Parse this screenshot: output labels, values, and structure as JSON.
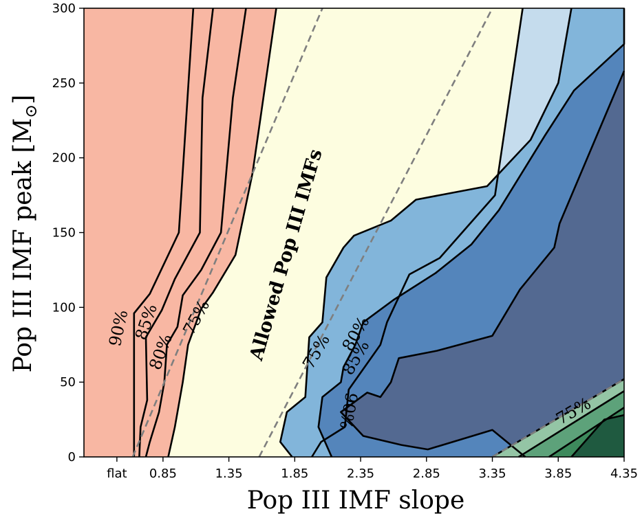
{
  "chart_data": {
    "type": "filled-contour",
    "xlabel": "Pop III  IMF slope",
    "ylabel": "Pop III  IMF peak [M",
    "ylabel_sun": "⊙",
    "ylabel_close": "]",
    "x_tick_labels": [
      "flat",
      "0.85",
      "1.35",
      "1.85",
      "2.35",
      "2.85",
      "3.35",
      "3.85",
      "4.35"
    ],
    "x_ticks": [
      0.5,
      0.85,
      1.35,
      1.85,
      2.35,
      2.85,
      3.35,
      3.85,
      4.35
    ],
    "xlim": [
      0.25,
      4.35
    ],
    "ylim": [
      0,
      300
    ],
    "y_ticks": [
      0,
      50,
      100,
      150,
      200,
      250,
      300
    ],
    "y_tick_labels": [
      "0",
      "50",
      "100",
      "150",
      "200",
      "250",
      "300"
    ],
    "annotation": "Allowed Pop III IMFs",
    "contour_labels": [
      {
        "text": "90%",
        "x": 0.52,
        "y": 86,
        "angle": -78
      },
      {
        "text": "85%",
        "x": 0.73,
        "y": 90,
        "angle": -72
      },
      {
        "text": "80%",
        "x": 0.84,
        "y": 70,
        "angle": -70
      },
      {
        "text": "75%",
        "x": 1.11,
        "y": 93,
        "angle": -62
      },
      {
        "text": "75%",
        "x": 2.02,
        "y": 70,
        "angle": -60
      },
      {
        "text": "80%",
        "x": 2.32,
        "y": 82,
        "angle": -60
      },
      {
        "text": "85%",
        "x": 2.32,
        "y": 66,
        "angle": -60
      },
      {
        "text": "90%",
        "x": 2.25,
        "y": 31,
        "angle": 100
      },
      {
        "text": "75%",
        "x": 3.97,
        "y": 30,
        "angle": -30
      }
    ],
    "bounds": [
      {
        "name": "lower",
        "x": [
          1.58,
          3.35
        ],
        "y": [
          0,
          300
        ]
      },
      {
        "name": "upper",
        "x": [
          0.62,
          2.06
        ],
        "y": [
          0,
          300
        ]
      },
      {
        "name": "corner",
        "x": [
          3.35,
          4.35
        ],
        "y": [
          0,
          52
        ]
      }
    ],
    "regions": [
      {
        "level": "above 90%",
        "side": "shallow",
        "color": "#924a55",
        "boundary": [
          [
            1.08,
            300
          ],
          [
            0.97,
            150
          ],
          [
            0.75,
            109
          ],
          [
            0.63,
            96
          ],
          [
            0.63,
            0
          ]
        ]
      },
      {
        "level": "85%",
        "side": "shallow",
        "color": "#c45c5c",
        "boundary": [
          [
            1.23,
            300
          ],
          [
            1.15,
            240
          ],
          [
            1.13,
            150
          ],
          [
            0.94,
            119
          ],
          [
            0.84,
            98
          ],
          [
            0.72,
            80
          ],
          [
            0.73,
            38
          ],
          [
            0.68,
            20
          ],
          [
            0.67,
            0
          ]
        ]
      },
      {
        "level": "80%",
        "side": "shallow",
        "color": "#f3796c",
        "boundary": [
          [
            1.48,
            300
          ],
          [
            1.38,
            240
          ],
          [
            1.29,
            150
          ],
          [
            1.14,
            125
          ],
          [
            1.0,
            108
          ],
          [
            0.96,
            87
          ],
          [
            0.88,
            75
          ],
          [
            0.86,
            50
          ],
          [
            0.82,
            30
          ],
          [
            0.75,
            10
          ],
          [
            0.72,
            0
          ]
        ]
      },
      {
        "level": "75%",
        "side": "shallow",
        "color": "#f8b7a3",
        "boundary": [
          [
            1.71,
            300
          ],
          [
            1.53,
            190
          ],
          [
            1.4,
            135
          ],
          [
            1.23,
            110
          ],
          [
            1.14,
            99
          ],
          [
            1.04,
            75
          ],
          [
            1.0,
            50
          ],
          [
            0.94,
            20
          ],
          [
            0.89,
            0
          ]
        ]
      },
      {
        "level": "75%",
        "side": "steep",
        "color": "#c5dced",
        "boundary": [
          [
            3.58,
            300
          ],
          [
            3.37,
            175
          ],
          [
            2.95,
            133
          ],
          [
            2.72,
            122
          ],
          [
            2.55,
            90
          ],
          [
            2.5,
            75
          ],
          [
            2.26,
            45
          ],
          [
            2.23,
            20
          ],
          [
            2.05,
            10
          ],
          [
            1.98,
            0
          ]
        ]
      },
      {
        "level": "80%",
        "side": "steep",
        "color": "#82b5da",
        "boundary": [
          [
            3.95,
            300
          ],
          [
            3.85,
            250
          ],
          [
            3.64,
            212
          ],
          [
            3.31,
            181
          ],
          [
            2.77,
            172
          ],
          [
            2.58,
            158
          ],
          [
            2.3,
            148
          ],
          [
            2.22,
            140
          ],
          [
            2.09,
            120
          ],
          [
            2.06,
            90
          ],
          [
            1.96,
            80
          ],
          [
            1.93,
            40
          ],
          [
            1.79,
            30
          ],
          [
            1.74,
            10
          ],
          [
            1.83,
            0
          ]
        ]
      },
      {
        "level": "85%",
        "side": "steep",
        "color": "#5485bb",
        "boundary": [
          [
            4.35,
            300
          ],
          [
            4.35,
            276
          ],
          [
            3.97,
            245
          ],
          [
            3.75,
            215
          ],
          [
            3.4,
            165
          ],
          [
            3.19,
            142
          ],
          [
            2.92,
            123
          ],
          [
            2.6,
            105
          ],
          [
            2.37,
            90
          ],
          [
            2.31,
            75
          ],
          [
            2.22,
            60
          ],
          [
            2.2,
            50
          ],
          [
            2.06,
            40
          ],
          [
            2.03,
            20
          ],
          [
            2.13,
            0
          ]
        ]
      },
      {
        "level": "90%",
        "side": "steep",
        "color": "#536991",
        "boundary": [
          [
            4.35,
            258
          ],
          [
            3.86,
            156
          ],
          [
            3.82,
            140
          ],
          [
            3.56,
            112
          ],
          [
            3.35,
            81
          ],
          [
            2.93,
            71
          ],
          [
            2.64,
            66
          ],
          [
            2.58,
            50
          ],
          [
            2.5,
            40
          ],
          [
            2.4,
            43
          ],
          [
            2.2,
            30
          ],
          [
            2.37,
            14
          ],
          [
            2.66,
            8
          ],
          [
            2.86,
            5
          ],
          [
            3.35,
            18
          ],
          [
            3.6,
            0
          ]
        ]
      },
      {
        "level": "corner-75%",
        "side": "steep",
        "color": "#94c5a5",
        "boundary": [
          [
            4.35,
            52
          ],
          [
            3.35,
            0
          ]
        ]
      },
      {
        "level": "corner-80%",
        "side": "steep",
        "color": "#5da27a",
        "boundary": [
          [
            4.35,
            44
          ],
          [
            3.55,
            0
          ]
        ]
      },
      {
        "level": "corner-85%",
        "side": "steep",
        "color": "#3d8a5c",
        "boundary": [
          [
            4.35,
            33
          ],
          [
            3.78,
            0
          ]
        ]
      },
      {
        "level": "corner-90%",
        "side": "steep",
        "color": "#1f5a40",
        "boundary": [
          [
            4.35,
            28
          ],
          [
            4.2,
            25
          ],
          [
            3.95,
            0
          ]
        ]
      }
    ],
    "background_color": "#fdfde0",
    "grid": false
  }
}
